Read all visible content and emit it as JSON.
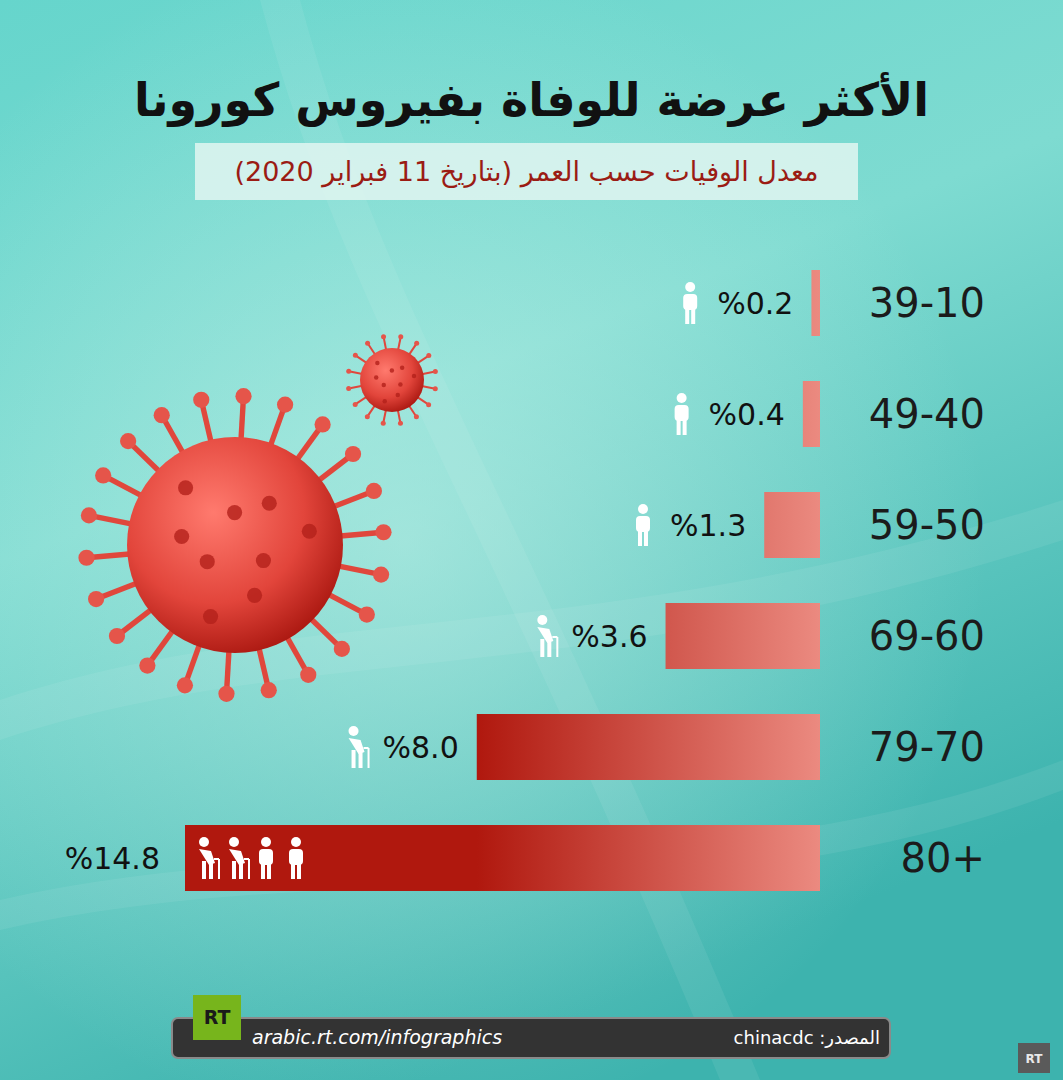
{
  "chart_data": {
    "type": "bar",
    "orientation": "horizontal",
    "title": "الأكثر عرضة للوفاة بفيروس كورونا",
    "subtitle": "معدل الوفيات حسب العمر (بتاريخ 11 فبراير 2020)",
    "categories": [
      "39-10",
      "49-40",
      "59-50",
      "69-60",
      "79-70",
      "80+"
    ],
    "values": [
      0.2,
      0.4,
      1.3,
      3.6,
      8.0,
      14.8
    ],
    "value_labels": [
      "%0.2",
      "%0.4",
      "%1.3",
      "%3.6",
      "%8.0",
      "%14.8"
    ],
    "data_labels": true,
    "color": "#b0180e",
    "xlim": [
      0,
      14.8
    ],
    "tick_labels": false,
    "grid": false,
    "source": "المصدر: chinacdc",
    "url": "arabic.rt.com/infographics",
    "logo": "RT"
  }
}
